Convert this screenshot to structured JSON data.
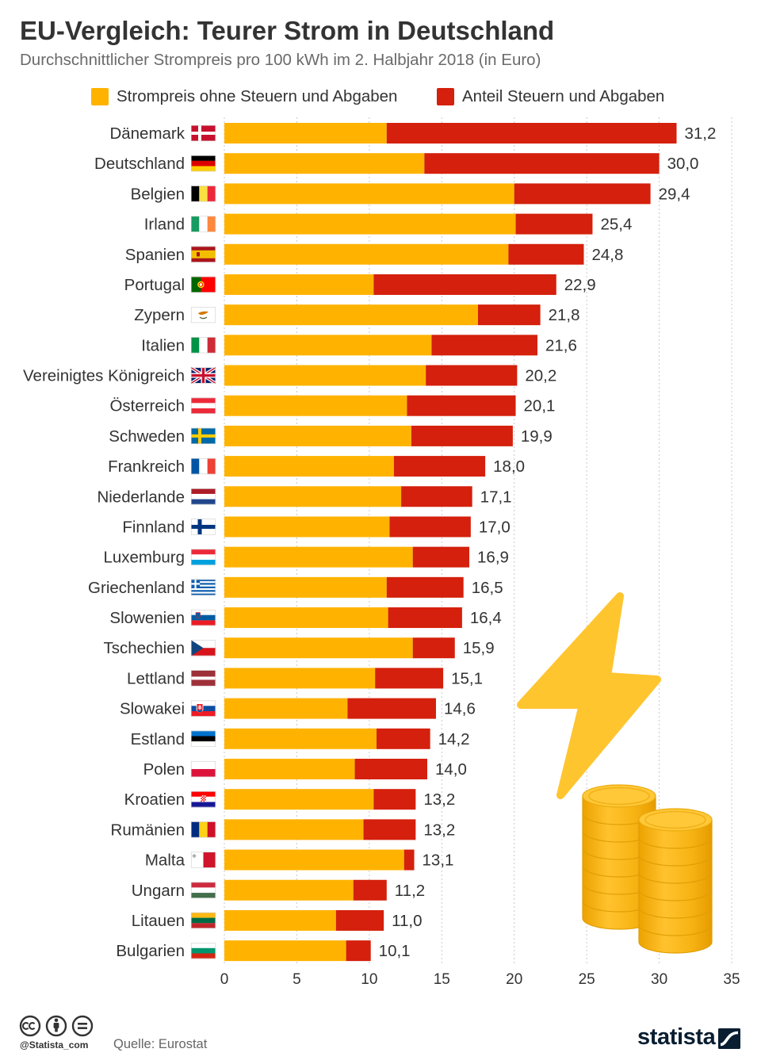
{
  "chart_data": {
    "type": "bar",
    "orientation": "horizontal",
    "stacked": true,
    "title": "EU-Vergleich: Teurer Strom in Deutschland",
    "subtitle": "Durchschnittlicher Strompreis pro 100 kWh im 2. Halbjahr 2018 (in Euro)",
    "xlabel": "",
    "ylabel": "",
    "xlim": [
      0,
      35
    ],
    "xticks": [
      0,
      5,
      10,
      15,
      20,
      25,
      30,
      35
    ],
    "grid": true,
    "legend": "top",
    "categories": [
      "Dänemark",
      "Deutschland",
      "Belgien",
      "Irland",
      "Spanien",
      "Portugal",
      "Zypern",
      "Italien",
      "Vereinigtes Königreich",
      "Österreich",
      "Schweden",
      "Frankreich",
      "Niederlande",
      "Finnland",
      "Luxemburg",
      "Griechenland",
      "Slowenien",
      "Tschechien",
      "Lettland",
      "Slowakei",
      "Estland",
      "Polen",
      "Kroatien",
      "Rumänien",
      "Malta",
      "Ungarn",
      "Litauen",
      "Bulgarien"
    ],
    "flags": [
      "flag-dk",
      "flag-de",
      "flag-be",
      "flag-ie",
      "flag-es",
      "flag-pt",
      "flag-cy",
      "flag-it",
      "flag-gb",
      "flag-at",
      "flag-se",
      "flag-fr",
      "flag-nl",
      "flag-fi",
      "flag-lu",
      "flag-gr",
      "flag-si",
      "flag-cz",
      "flag-lv",
      "flag-sk",
      "flag-ee",
      "flag-pl",
      "flag-hr",
      "flag-ro",
      "flag-mt",
      "flag-hu",
      "flag-lt",
      "flag-bg"
    ],
    "series": [
      {
        "name": "Strompreis ohne Steuern und Abgaben",
        "color": "#FFB300",
        "values": [
          11.2,
          13.8,
          20.0,
          20.1,
          19.6,
          10.3,
          17.5,
          14.3,
          13.9,
          12.6,
          12.9,
          11.7,
          12.2,
          11.4,
          13.0,
          11.2,
          11.3,
          13.0,
          10.4,
          8.5,
          10.5,
          9.0,
          10.3,
          9.6,
          12.4,
          8.9,
          7.7,
          8.4
        ]
      },
      {
        "name": "Anteil Steuern und Abgaben",
        "color": "#D4200C",
        "values": [
          20.0,
          16.2,
          9.4,
          5.3,
          5.2,
          12.6,
          4.3,
          7.3,
          6.3,
          7.5,
          7.0,
          6.3,
          4.9,
          5.6,
          3.9,
          5.3,
          5.1,
          2.9,
          4.7,
          6.1,
          3.7,
          5.0,
          2.9,
          3.6,
          0.7,
          2.3,
          3.3,
          1.7
        ]
      }
    ],
    "totals": [
      "31,2",
      "30,0",
      "29,4",
      "25,4",
      "24,8",
      "22,9",
      "21,8",
      "21,6",
      "20,2",
      "20,1",
      "19,9",
      "18,0",
      "17,1",
      "17,0",
      "16,9",
      "16,5",
      "16,4",
      "15,9",
      "15,1",
      "14,6",
      "14,2",
      "14,0",
      "13,2",
      "13,2",
      "13,1",
      "11,2",
      "11,0",
      "10,1"
    ]
  },
  "decorations": [
    "lightning-bolt-icon",
    "coin-stack-icon"
  ],
  "footer": {
    "license_icons": [
      "cc-icon",
      "by-icon",
      "nd-icon"
    ],
    "handle": "@Statista_com",
    "source": "Quelle: Eurostat",
    "brand": "statista",
    "brand_icon": "statista-logo-icon"
  }
}
